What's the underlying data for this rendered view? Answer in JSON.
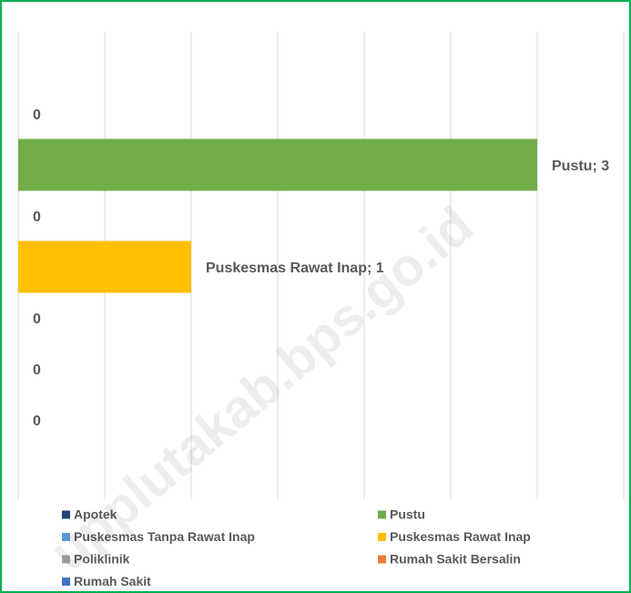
{
  "chart_data": {
    "type": "bar",
    "orientation": "horizontal",
    "watermark": "upplutakab.bps.go.id",
    "xlim": [
      0,
      3.5
    ],
    "xticks": [
      0,
      0.5,
      1,
      1.5,
      2,
      2.5,
      3,
      3.5
    ],
    "grid": true,
    "legend": "bottom",
    "series": [
      {
        "name": "Apotek",
        "color": "#264478",
        "values": [
          0
        ]
      },
      {
        "name": "Pustu",
        "color": "#70ad47",
        "values": [
          3
        ],
        "value_labels": [
          "Pustu; 3"
        ]
      },
      {
        "name": "Puskesmas Tanpa Rawat Inap",
        "color": "#5b9bd5",
        "values": [
          0
        ]
      },
      {
        "name": "Puskesmas Rawat Inap",
        "color": "#ffc000",
        "values": [
          1
        ],
        "value_labels": [
          "Puskesmas Rawat Inap; 1"
        ]
      },
      {
        "name": "Poliklinik",
        "color": "#a5a5a5",
        "values": [
          0
        ]
      },
      {
        "name": "Rumah Sakit Bersalin",
        "color": "#ed7d31",
        "values": [
          0
        ]
      },
      {
        "name": "Rumah Sakit",
        "color": "#4472c4",
        "values": [
          0
        ]
      }
    ]
  }
}
